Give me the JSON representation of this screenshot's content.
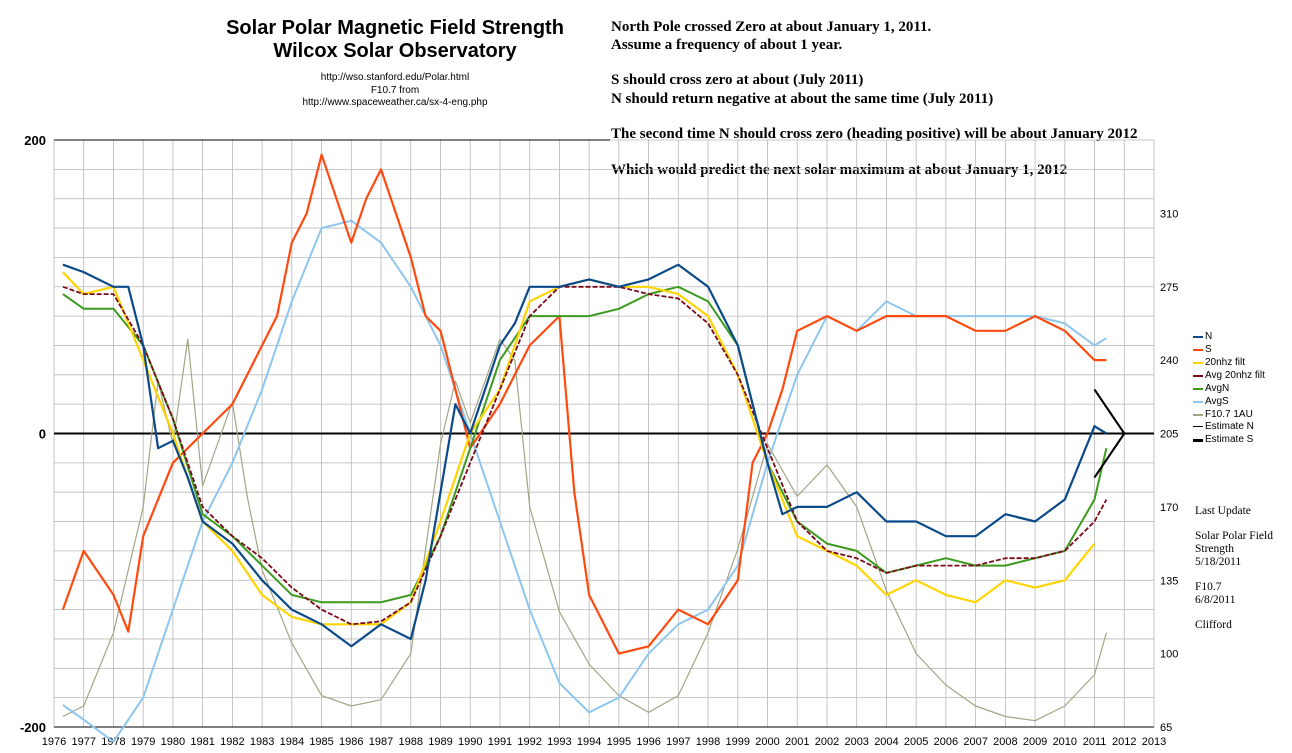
{
  "header": {
    "title_line1": "Solar Polar Magnetic Field Strength",
    "title_line2": "Wilcox Solar Observatory",
    "source1": "http://wso.stanford.edu/Polar.html",
    "source2": "F10.7 from",
    "source3": "http://www.spaceweather.ca/sx-4-eng.php"
  },
  "notes": [
    "North Pole crossed Zero at about January 1, 2011.",
    "Assume a frequency of about 1 year.",
    "S should cross zero at about (July  2011)",
    "N should return negative at about the same time (July 2011)",
    "The second time N should cross zero (heading positive) will be about January 2012",
    "Which would predict the next solar maximum at about January 1, 2012"
  ],
  "side_notes": {
    "last_update": "Last Update",
    "polar_field_1": "Solar Polar Field",
    "polar_field_2": "Strength",
    "polar_field_date": "5/18/2011",
    "f107": "F10.7",
    "f107_date": "6/8/2011",
    "author": "Clifford"
  },
  "colors": {
    "N": "#0b4a8a",
    "S": "#ff4a0f",
    "filt20": "#ffd400",
    "avgfilt": "#7a0a1a",
    "AvgN": "#3c9b1e",
    "AvgS": "#8ec6ee",
    "F107": "#a3a585",
    "EstN": "#000000",
    "EstS": "#000000",
    "grid": "#b8b8b8"
  },
  "chart_data": {
    "type": "line",
    "x_unit": "year",
    "xlim": [
      1976,
      2013
    ],
    "x_ticks": [
      "1976",
      "1977",
      "1978",
      "1979",
      "1980",
      "1981",
      "1982",
      "1983",
      "1984",
      "1985",
      "1986",
      "1987",
      "1988",
      "1989",
      "1990",
      "1991",
      "1992",
      "1993",
      "1994",
      "1995",
      "1996",
      "1997",
      "1998",
      "1999",
      "2000",
      "2001",
      "2002",
      "2003",
      "2004",
      "2005",
      "2006",
      "2007",
      "2008",
      "2009",
      "2010",
      "2011",
      "2012",
      "2013"
    ],
    "y_left": {
      "ylim": [
        -200,
        200
      ],
      "ticks": [
        "200",
        "0",
        "-200"
      ]
    },
    "y_right": {
      "ylim": [
        65,
        345
      ],
      "ticks": [
        "310",
        "275",
        "240",
        "205",
        "170",
        "135",
        "100",
        "65"
      ]
    },
    "legend": [
      "N",
      "S",
      "20nhz filt",
      "Avg 20nhz filt",
      "AvgN",
      "AvgS",
      "F10.7 1AU",
      "Estimate N",
      "Estimate S"
    ],
    "legend_position": "right",
    "series": [
      {
        "name": "N",
        "key": "N",
        "axis": "left",
        "x": [
          1976.3,
          1977,
          1978,
          1978.5,
          1979,
          1979.5,
          1980,
          1980.5,
          1981,
          1982,
          1983,
          1984,
          1985,
          1986,
          1987,
          1988,
          1988.5,
          1989,
          1989.5,
          1990,
          1991,
          1991.5,
          1992,
          1993,
          1994,
          1995,
          1996,
          1997,
          1998,
          1999,
          1999.5,
          2000,
          2000.5,
          2001,
          2002,
          2003,
          2004,
          2005,
          2006,
          2007,
          2008,
          2009,
          2010,
          2011,
          2011.4
        ],
        "y": [
          115,
          110,
          100,
          100,
          60,
          -10,
          -5,
          -30,
          -60,
          -75,
          -100,
          -120,
          -130,
          -145,
          -130,
          -140,
          -100,
          -40,
          20,
          0,
          60,
          75,
          100,
          100,
          105,
          100,
          105,
          115,
          100,
          60,
          20,
          -20,
          -55,
          -50,
          -50,
          -40,
          -60,
          -60,
          -70,
          -70,
          -55,
          -60,
          -45,
          5,
          0
        ]
      },
      {
        "name": "S",
        "key": "S",
        "axis": "left",
        "x": [
          1976.3,
          1977,
          1978,
          1978.5,
          1979,
          1980,
          1981,
          1982,
          1983,
          1983.5,
          1984,
          1984.5,
          1985,
          1986,
          1986.5,
          1987,
          1988,
          1988.5,
          1989,
          1989.5,
          1990,
          1991,
          1992,
          1993,
          1993.5,
          1994,
          1995,
          1996,
          1997,
          1998,
          1999,
          1999.5,
          2000,
          2000.5,
          2001,
          2002,
          2003,
          2004,
          2005,
          2006,
          2007,
          2008,
          2009,
          2010,
          2011,
          2011.4
        ],
        "y": [
          -120,
          -80,
          -110,
          -135,
          -70,
          -20,
          0,
          20,
          60,
          80,
          130,
          150,
          190,
          130,
          160,
          180,
          120,
          80,
          70,
          30,
          -10,
          20,
          60,
          80,
          -40,
          -110,
          -150,
          -145,
          -120,
          -130,
          -100,
          -20,
          0,
          30,
          70,
          80,
          70,
          80,
          80,
          80,
          70,
          70,
          80,
          70,
          50,
          50
        ]
      },
      {
        "name": "20nhz filt",
        "key": "filt20",
        "axis": "left",
        "x": [
          1976.3,
          1977,
          1978,
          1979,
          1980,
          1981,
          1982,
          1983,
          1984,
          1985,
          1986,
          1987,
          1988,
          1989,
          1990,
          1991,
          1992,
          1993,
          1994,
          1995,
          1996,
          1997,
          1998,
          1999,
          2000,
          2001,
          2002,
          2003,
          2004,
          2005,
          2006,
          2007,
          2008,
          2009,
          2010,
          2011
        ],
        "y": [
          110,
          95,
          100,
          50,
          0,
          -60,
          -80,
          -110,
          -125,
          -130,
          -130,
          -130,
          -115,
          -60,
          0,
          30,
          90,
          100,
          105,
          100,
          100,
          95,
          80,
          40,
          -20,
          -70,
          -80,
          -90,
          -110,
          -100,
          -110,
          -115,
          -100,
          -105,
          -100,
          -75
        ]
      },
      {
        "name": "Avg 20nhz filt",
        "key": "avgfilt",
        "axis": "left",
        "x": [
          1976.3,
          1977,
          1978,
          1979,
          1980,
          1981,
          1982,
          1983,
          1984,
          1985,
          1986,
          1987,
          1988,
          1989,
          1990,
          1991,
          1992,
          1993,
          1994,
          1995,
          1996,
          1997,
          1998,
          1999,
          2000,
          2001,
          2002,
          2003,
          2004,
          2005,
          2006,
          2007,
          2008,
          2009,
          2010,
          2011,
          2011.4
        ],
        "y": [
          100,
          95,
          95,
          60,
          10,
          -50,
          -70,
          -85,
          -105,
          -120,
          -130,
          -128,
          -115,
          -70,
          -20,
          30,
          80,
          100,
          100,
          100,
          95,
          92,
          75,
          40,
          -10,
          -60,
          -80,
          -85,
          -95,
          -90,
          -90,
          -90,
          -85,
          -85,
          -80,
          -60,
          -45
        ]
      },
      {
        "name": "AvgN",
        "key": "AvgN",
        "axis": "left",
        "x": [
          1976.3,
          1977,
          1978,
          1979,
          1980,
          1981,
          1982,
          1983,
          1984,
          1985,
          1986,
          1987,
          1988,
          1989,
          1990,
          1991,
          1992,
          1993,
          1994,
          1995,
          1996,
          1997,
          1998,
          1999,
          2000,
          2001,
          2002,
          2003,
          2004,
          2005,
          2006,
          2007,
          2008,
          2009,
          2010,
          2011,
          2011.4
        ],
        "y": [
          95,
          85,
          85,
          60,
          10,
          -55,
          -70,
          -90,
          -110,
          -115,
          -115,
          -115,
          -110,
          -70,
          -10,
          50,
          80,
          80,
          80,
          85,
          95,
          100,
          90,
          60,
          -20,
          -60,
          -75,
          -80,
          -95,
          -90,
          -85,
          -90,
          -90,
          -85,
          -80,
          -45,
          -10
        ]
      },
      {
        "name": "AvgS",
        "key": "AvgS",
        "axis": "left",
        "x": [
          1976.3,
          1977,
          1978,
          1979,
          1980,
          1981,
          1982,
          1983,
          1984,
          1985,
          1986,
          1987,
          1988,
          1989,
          1990,
          1991,
          1992,
          1993,
          1994,
          1995,
          1996,
          1997,
          1998,
          1999,
          2000,
          2001,
          2002,
          2003,
          2004,
          2005,
          2006,
          2007,
          2008,
          2009,
          2010,
          2011,
          2011.4
        ],
        "y": [
          -185,
          -195,
          -210,
          -180,
          -120,
          -60,
          -20,
          30,
          90,
          140,
          145,
          130,
          100,
          60,
          0,
          -60,
          -120,
          -170,
          -190,
          -180,
          -150,
          -130,
          -120,
          -90,
          -20,
          40,
          80,
          70,
          90,
          80,
          80,
          80,
          80,
          80,
          75,
          60,
          65
        ]
      },
      {
        "name": "F10.7 1AU",
        "key": "F107",
        "axis": "right",
        "x": [
          1976.3,
          1977,
          1978,
          1979,
          1979.5,
          1980,
          1980.5,
          1981,
          1982,
          1982.5,
          1983,
          1984,
          1985,
          1986,
          1987,
          1988,
          1989,
          1989.5,
          1990,
          1990.5,
          1991,
          1991.5,
          1992,
          1993,
          1994,
          1995,
          1996,
          1997,
          1998,
          1999,
          2000,
          2001,
          2002,
          2003,
          2004,
          2005,
          2006,
          2007,
          2008,
          2009,
          2010,
          2011,
          2011.4
        ],
        "y": [
          70,
          75,
          110,
          170,
          230,
          200,
          250,
          180,
          220,
          175,
          140,
          105,
          80,
          75,
          78,
          100,
          200,
          230,
          210,
          230,
          250,
          240,
          170,
          120,
          95,
          80,
          72,
          80,
          110,
          150,
          200,
          175,
          190,
          170,
          130,
          100,
          85,
          75,
          70,
          68,
          75,
          90,
          110
        ]
      },
      {
        "name": "Estimate N",
        "key": "EstN",
        "axis": "left",
        "x": [
          2011.0,
          2012.0,
          2011.0
        ],
        "y": [
          30,
          0,
          -30
        ]
      },
      {
        "name": "Estimate S",
        "key": "EstS",
        "axis": "left",
        "x": [
          2011.0,
          2012.0,
          2011.0
        ],
        "y": [
          30,
          0,
          -30
        ]
      }
    ]
  }
}
